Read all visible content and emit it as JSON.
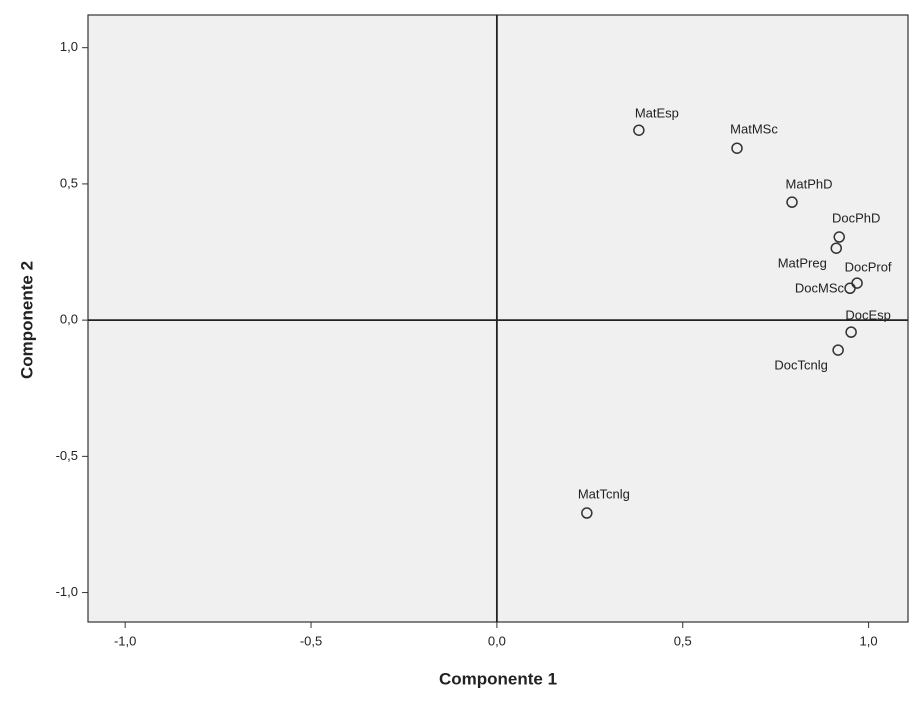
{
  "chart_data": {
    "type": "scatter",
    "x_label": "Componente 1",
    "y_label": "Componente 2",
    "labels": [
      "MatEsp",
      "MatMSc",
      "MatPhD",
      "DocPhD",
      "MatPreg",
      "DocProf",
      "DocMSc",
      "DocEsp",
      "DocTcnlg",
      "MatTcnlg"
    ],
    "x": [
      0.382,
      0.646,
      0.794,
      0.921,
      0.913,
      0.969,
      0.95,
      0.953,
      0.918,
      0.242
    ],
    "values": [
      0.697,
      0.631,
      0.433,
      0.305,
      0.264,
      0.136,
      0.117,
      -0.044,
      -0.11,
      -0.708
    ],
    "xlim": [
      -1.1,
      1.106
    ],
    "ylim": [
      -1.108,
      1.12
    ],
    "xticks": [
      {
        "value": -1,
        "label": "-1,0"
      },
      {
        "value": -0.5,
        "label": "-0,5"
      },
      {
        "value": 0,
        "label": "0,0"
      },
      {
        "value": 0.5,
        "label": "0,5"
      },
      {
        "value": 1,
        "label": "1,0"
      }
    ],
    "yticks": [
      {
        "value": -1,
        "label": "-1,0"
      },
      {
        "value": -0.5,
        "label": "-0,5"
      },
      {
        "value": 0,
        "label": "0,0"
      },
      {
        "value": 0.5,
        "label": "0,5"
      },
      {
        "value": 1,
        "label": "1,0"
      }
    ],
    "color": "#333333",
    "background": "#f0f0f0"
  }
}
